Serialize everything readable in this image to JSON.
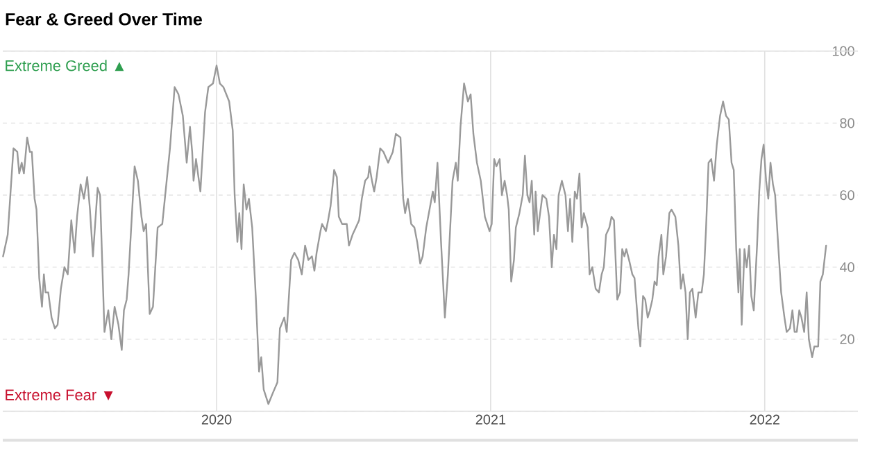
{
  "chart_data": {
    "type": "line",
    "title": "Fear & Greed Over Time",
    "annotations": [
      "Extreme Greed ▲",
      "Extreme Fear ▼"
    ],
    "xlim": [
      2019.22,
      2022.34
    ],
    "xticks": [
      2020,
      2021,
      2022
    ],
    "ylim": [
      0,
      100
    ],
    "yticks": [
      {
        "value": 0,
        "label": null
      },
      20,
      40,
      60,
      80,
      100
    ],
    "grid": true,
    "marker": "none",
    "line_style": "solid",
    "series": [
      {
        "color": "#999999",
        "x": [
          2019.221,
          2019.238,
          2019.259,
          2019.273,
          2019.28,
          2019.289,
          2019.297,
          2019.309,
          2019.319,
          2019.326,
          2019.336,
          2019.343,
          2019.353,
          2019.363,
          2019.37,
          2019.376,
          2019.386,
          2019.398,
          2019.41,
          2019.42,
          2019.432,
          2019.445,
          2019.457,
          2019.47,
          2019.482,
          2019.491,
          2019.504,
          2019.516,
          2019.528,
          2019.538,
          2019.549,
          2019.566,
          2019.575,
          2019.591,
          2019.605,
          2019.616,
          2019.628,
          2019.642,
          2019.654,
          2019.662,
          2019.672,
          2019.679,
          2019.701,
          2019.713,
          2019.726,
          2019.734,
          2019.743,
          2019.756,
          2019.768,
          2019.785,
          2019.802,
          2019.818,
          2019.83,
          2019.847,
          2019.861,
          2019.877,
          2019.891,
          2019.903,
          2019.911,
          2019.916,
          2019.925,
          2019.941,
          2019.958,
          2019.97,
          2019.987,
          2020.0,
          2020.012,
          2020.025,
          2020.046,
          2020.059,
          2020.066,
          2020.076,
          2020.083,
          2020.091,
          2020.099,
          2020.109,
          2020.118,
          2020.13,
          2020.143,
          2020.155,
          2020.163,
          2020.172,
          2020.189,
          2020.205,
          2020.222,
          2020.231,
          2020.247,
          2020.256,
          2020.272,
          2020.284,
          2020.298,
          2020.311,
          2020.323,
          2020.335,
          2020.348,
          2020.357,
          2020.365,
          2020.379,
          2020.385,
          2020.399,
          2020.407,
          2020.416,
          2020.429,
          2020.439,
          2020.446,
          2020.458,
          2020.475,
          2020.483,
          2020.496,
          2020.508,
          2020.52,
          2020.53,
          2020.542,
          2020.553,
          2020.558,
          2020.567,
          2020.575,
          2020.584,
          2020.597,
          2020.609,
          2020.626,
          2020.643,
          2020.654,
          2020.671,
          2020.681,
          2020.688,
          2020.698,
          2020.71,
          2020.722,
          2020.732,
          2020.743,
          2020.752,
          2020.765,
          2020.777,
          2020.789,
          2020.796,
          2020.806,
          2020.819,
          2020.833,
          2020.844,
          2020.861,
          2020.873,
          2020.88,
          2020.89,
          2020.903,
          2020.917,
          2020.927,
          2020.937,
          2020.95,
          2020.964,
          2020.979,
          2020.996,
          2021.004,
          2021.013,
          2021.021,
          2021.033,
          2021.041,
          2021.051,
          2021.06,
          2021.066,
          2021.075,
          2021.085,
          2021.092,
          2021.105,
          2021.117,
          2021.125,
          2021.134,
          2021.142,
          2021.15,
          2021.159,
          2021.164,
          2021.172,
          2021.189,
          2021.203,
          2021.213,
          2021.223,
          2021.231,
          2021.24,
          2021.248,
          2021.26,
          2021.273,
          2021.282,
          2021.29,
          2021.298,
          2021.307,
          2021.315,
          2021.324,
          2021.332,
          2021.34,
          2021.354,
          2021.361,
          2021.371,
          2021.383,
          2021.395,
          2021.405,
          2021.413,
          2021.421,
          2021.433,
          2021.441,
          2021.45,
          2021.462,
          2021.472,
          2021.48,
          2021.488,
          2021.495,
          2021.505,
          2021.517,
          2021.525,
          2021.539,
          2021.546,
          2021.556,
          2021.564,
          2021.573,
          2021.581,
          2021.59,
          2021.598,
          2021.606,
          2021.613,
          2021.623,
          2021.63,
          2021.64,
          2021.652,
          2021.66,
          2021.674,
          2021.685,
          2021.694,
          2021.702,
          2021.711,
          2021.719,
          2021.727,
          2021.736,
          2021.748,
          2021.758,
          2021.77,
          2021.778,
          2021.786,
          2021.795,
          2021.805,
          2021.815,
          2021.825,
          2021.837,
          2021.848,
          2021.859,
          2021.869,
          2021.879,
          2021.887,
          2021.896,
          2021.904,
          2021.909,
          2021.916,
          2021.926,
          2021.934,
          2021.943,
          2021.951,
          2021.96,
          2021.972,
          2021.98,
          2021.988,
          2021.996,
          2022.005,
          2022.013,
          2022.021,
          2022.03,
          2022.038,
          2022.05,
          2022.06,
          2022.072,
          2022.08,
          2022.092,
          2022.101,
          2022.109,
          2022.117,
          2022.126,
          2022.134,
          2022.144,
          2022.153,
          2022.161,
          2022.173,
          2022.181,
          2022.195,
          2022.203,
          2022.212,
          2022.224
        ],
        "values": [
          43,
          49,
          73,
          72,
          66,
          69,
          66,
          76,
          72,
          72,
          59,
          56,
          37,
          29,
          38,
          33,
          33,
          26,
          23,
          24,
          34,
          40,
          38,
          53,
          44,
          54,
          63,
          59,
          65,
          56,
          43,
          62,
          60,
          22,
          28,
          20,
          29,
          24,
          17,
          28,
          31,
          38,
          68,
          64,
          54,
          50,
          52,
          27,
          29,
          51,
          52,
          64,
          73,
          90,
          88,
          82,
          69,
          79,
          72,
          64,
          70,
          61,
          83,
          90,
          91,
          96,
          91,
          90,
          86,
          78,
          60,
          47,
          55,
          45,
          63,
          56,
          59,
          51,
          32,
          11,
          15,
          6,
          2,
          5,
          8,
          23,
          26,
          22,
          42,
          44,
          42,
          38,
          46,
          42,
          43,
          39,
          44,
          50,
          52,
          50,
          53,
          57,
          67,
          65,
          54,
          52,
          52,
          46,
          49,
          51,
          53,
          59,
          64,
          65,
          68,
          64,
          61,
          65,
          73,
          72,
          69,
          72,
          77,
          76,
          59,
          55,
          59,
          52,
          51,
          47,
          41,
          43,
          51,
          56,
          61,
          58,
          69,
          47,
          26,
          38,
          64,
          69,
          64,
          79,
          91,
          86,
          88,
          77,
          69,
          64,
          54,
          50,
          52,
          70,
          68,
          70,
          60,
          64,
          60,
          56,
          36,
          42,
          51,
          55,
          60,
          71,
          60,
          58,
          64,
          49,
          61,
          50,
          60,
          59,
          54,
          40,
          49,
          45,
          60,
          64,
          60,
          50,
          59,
          47,
          61,
          59,
          66,
          51,
          55,
          51,
          38,
          40,
          34,
          33,
          38,
          40,
          49,
          51,
          54,
          53,
          31,
          33,
          45,
          43,
          45,
          42,
          38,
          37,
          23,
          18,
          32,
          31,
          26,
          28,
          31,
          36,
          35,
          43,
          49,
          38,
          43,
          55,
          56,
          54,
          46,
          34,
          38,
          33,
          20,
          33,
          34,
          26,
          33,
          33,
          38,
          51,
          69,
          70,
          64,
          74,
          82,
          86,
          82,
          81,
          69,
          67,
          45,
          33,
          45,
          24,
          45,
          40,
          46,
          32,
          28,
          46,
          61,
          70,
          74,
          64,
          59,
          69,
          63,
          60,
          45,
          33,
          26,
          22,
          23,
          28,
          22,
          22,
          28,
          26,
          22,
          33,
          20,
          15,
          18,
          18,
          36,
          38,
          46
        ]
      }
    ]
  }
}
